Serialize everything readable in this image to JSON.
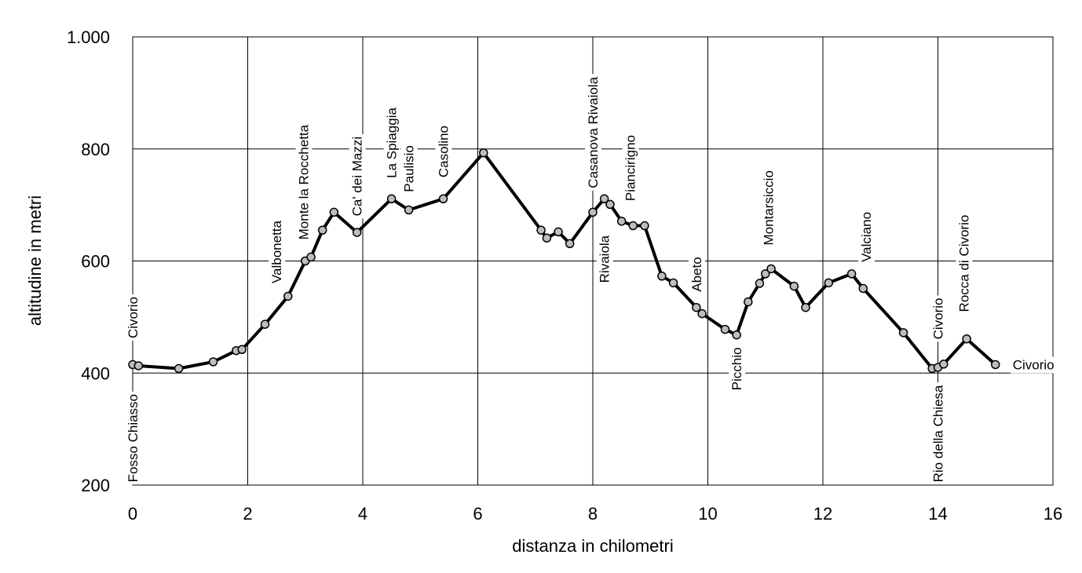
{
  "chart_data": {
    "type": "line",
    "xlabel": "distanza in chilometri",
    "ylabel": "altitudine  in metri",
    "xlim": [
      0,
      16
    ],
    "ylim": [
      200,
      1000
    ],
    "xticks": [
      "0",
      "2",
      "4",
      "6",
      "8",
      "10",
      "12",
      "14",
      "16"
    ],
    "yticks": [
      "200",
      "400",
      "600",
      "800",
      "1.000"
    ],
    "grid": true,
    "points": [
      {
        "x": 0.0,
        "y": 415
      },
      {
        "x": 0.1,
        "y": 413
      },
      {
        "x": 0.8,
        "y": 408
      },
      {
        "x": 1.4,
        "y": 420
      },
      {
        "x": 1.8,
        "y": 440
      },
      {
        "x": 1.9,
        "y": 442
      },
      {
        "x": 2.3,
        "y": 487
      },
      {
        "x": 2.7,
        "y": 537
      },
      {
        "x": 3.0,
        "y": 600
      },
      {
        "x": 3.1,
        "y": 607
      },
      {
        "x": 3.3,
        "y": 655
      },
      {
        "x": 3.5,
        "y": 687
      },
      {
        "x": 3.9,
        "y": 651
      },
      {
        "x": 4.5,
        "y": 711
      },
      {
        "x": 4.8,
        "y": 691
      },
      {
        "x": 5.4,
        "y": 711
      },
      {
        "x": 6.1,
        "y": 793
      },
      {
        "x": 7.1,
        "y": 655
      },
      {
        "x": 7.2,
        "y": 641
      },
      {
        "x": 7.4,
        "y": 652
      },
      {
        "x": 7.6,
        "y": 631
      },
      {
        "x": 8.0,
        "y": 687
      },
      {
        "x": 8.2,
        "y": 711
      },
      {
        "x": 8.3,
        "y": 701
      },
      {
        "x": 8.5,
        "y": 671
      },
      {
        "x": 8.7,
        "y": 663
      },
      {
        "x": 8.9,
        "y": 663
      },
      {
        "x": 9.2,
        "y": 573
      },
      {
        "x": 9.4,
        "y": 561
      },
      {
        "x": 9.8,
        "y": 517
      },
      {
        "x": 9.9,
        "y": 506
      },
      {
        "x": 10.3,
        "y": 478
      },
      {
        "x": 10.5,
        "y": 468
      },
      {
        "x": 10.7,
        "y": 527
      },
      {
        "x": 10.9,
        "y": 560
      },
      {
        "x": 11.0,
        "y": 577
      },
      {
        "x": 11.1,
        "y": 586
      },
      {
        "x": 11.5,
        "y": 555
      },
      {
        "x": 11.7,
        "y": 517
      },
      {
        "x": 12.1,
        "y": 561
      },
      {
        "x": 12.5,
        "y": 577
      },
      {
        "x": 12.7,
        "y": 551
      },
      {
        "x": 13.4,
        "y": 472
      },
      {
        "x": 13.9,
        "y": 408
      },
      {
        "x": 14.0,
        "y": 410
      },
      {
        "x": 14.1,
        "y": 416
      },
      {
        "x": 14.5,
        "y": 461
      },
      {
        "x": 15.0,
        "y": 415
      }
    ],
    "annotations": [
      {
        "text": "Civorio",
        "x": 0.0,
        "y": 462,
        "rotation": -90
      },
      {
        "text": "Fosso Chiasso",
        "x": 0.0,
        "y": 205,
        "rotation": -90
      },
      {
        "text": "Valbonetta",
        "x": 2.5,
        "y": 560,
        "rotation": -90
      },
      {
        "text": "Monte la Rocchetta",
        "x": 2.97,
        "y": 638,
        "rotation": -90
      },
      {
        "text": "Ca' dei Mazzi",
        "x": 3.9,
        "y": 680,
        "rotation": -90
      },
      {
        "text": "La Spiaggia",
        "x": 4.5,
        "y": 748,
        "rotation": -90
      },
      {
        "text": "Paulisio",
        "x": 4.8,
        "y": 723,
        "rotation": -90
      },
      {
        "text": "Casolino",
        "x": 5.4,
        "y": 749,
        "rotation": -90
      },
      {
        "text": "Casanova Rivaiola",
        "x": 8.0,
        "y": 730,
        "rotation": -90
      },
      {
        "text": "Piancirigno",
        "x": 8.65,
        "y": 707,
        "rotation": -90
      },
      {
        "text": "Rivaiola",
        "x": 8.2,
        "y": 561,
        "rotation": -90
      },
      {
        "text": "Abeto",
        "x": 9.8,
        "y": 545,
        "rotation": -90
      },
      {
        "text": "Picchio",
        "x": 10.5,
        "y": 369,
        "rotation": -90
      },
      {
        "text": "Montarsiccio",
        "x": 11.05,
        "y": 628,
        "rotation": -90
      },
      {
        "text": "Valciano",
        "x": 12.75,
        "y": 598,
        "rotation": -90
      },
      {
        "text": "Civorio",
        "x": 14.0,
        "y": 460,
        "rotation": -90
      },
      {
        "text": "Rio della Chiesa",
        "x": 14.0,
        "y": 205,
        "rotation": -90
      },
      {
        "text": "Rocca di Civorio",
        "x": 14.45,
        "y": 509,
        "rotation": -90
      },
      {
        "text": "Civorio",
        "x": 15.3,
        "y": 415,
        "rotation": 0
      }
    ]
  }
}
